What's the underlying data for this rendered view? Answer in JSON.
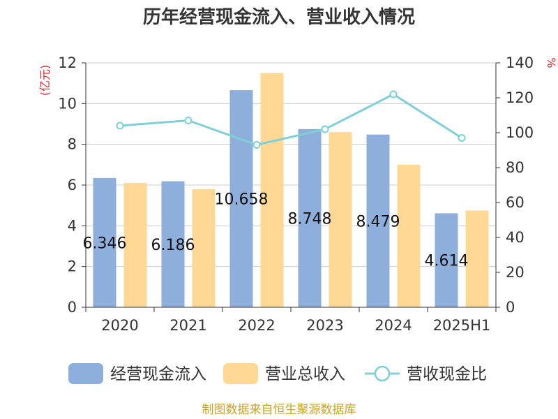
{
  "chart_data": {
    "type": "bar",
    "title": "历年经营现金流入、营业收入情况",
    "categories": [
      "2020",
      "2021",
      "2022",
      "2023",
      "2024",
      "2025H1"
    ],
    "series": [
      {
        "name": "经营现金流入",
        "type": "bar",
        "axis": "left",
        "color": "#8eaedb",
        "values": [
          6.346,
          6.186,
          10.658,
          8.748,
          8.479,
          4.614
        ],
        "labels": [
          "6.346",
          "6.186",
          "10.658",
          "8.748",
          "8.479",
          "4.614"
        ]
      },
      {
        "name": "营业总收入",
        "type": "bar",
        "axis": "left",
        "color": "#ffd896",
        "values": [
          6.1,
          5.8,
          11.5,
          8.6,
          7.0,
          4.75
        ]
      },
      {
        "name": "营收现金比",
        "type": "line",
        "axis": "right",
        "color": "#7fd0d6",
        "values": [
          104,
          107,
          93,
          102,
          122,
          97
        ]
      }
    ],
    "left_axis": {
      "unit": "(亿元)",
      "ylim": [
        0,
        12
      ],
      "ticks": [
        "0",
        "2",
        "4",
        "6",
        "8",
        "10",
        "12"
      ]
    },
    "right_axis": {
      "unit": "%",
      "ylim": [
        0,
        140
      ],
      "ticks": [
        "0",
        "20",
        "40",
        "60",
        "80",
        "100",
        "120",
        "140"
      ]
    },
    "grid": true,
    "legend_position": "bottom"
  },
  "source": "制图数据来自恒生聚源数据库"
}
